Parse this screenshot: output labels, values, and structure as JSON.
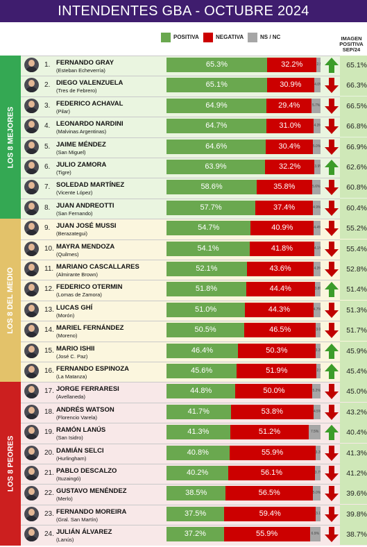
{
  "title": "INTENDENTES GBA - OCTUBRE 2024",
  "legend": {
    "positiva": "POSITIVA",
    "negativa": "NEGATIVA",
    "nsnc": "NS / NC",
    "imagen": "IMAGEN POSITIVA SEP/24"
  },
  "colors": {
    "header_bg": "#3f1d6e",
    "positiva": "#6aa84f",
    "negativa": "#cc0000",
    "nsnc": "#a6a6a6",
    "mejores": "#34a853",
    "medio": "#e3c26a",
    "peores": "#cc1f1f",
    "arrow_up": "#3c9c2a",
    "arrow_down": "#c00000"
  },
  "groups": [
    {
      "label": "LOS 8 MEJORES",
      "color_key": "mejores",
      "bg": "#eaf5e0"
    },
    {
      "label": "LOS 8 DEL MEDIO",
      "color_key": "medio",
      "bg": "#fbf6de"
    },
    {
      "label": "LOS 8 PEORES",
      "color_key": "peores",
      "bg": "#f8e8e8"
    }
  ],
  "chart_data": {
    "type": "bar",
    "stacked": true,
    "title": "INTENDENTES GBA - OCTUBRE 2024",
    "series_names": [
      "POSITIVA",
      "NEGATIVA",
      "NS / NC"
    ],
    "rows": [
      {
        "rank": "1.",
        "name": "FERNANDO GRAY",
        "district": "(Esteban Echeverría)",
        "positiva": 65.3,
        "negativa": 32.2,
        "nsnc": 2.5,
        "pos_label": "65.3%",
        "neg_label": "32.2%",
        "nsnc_label": "2.5%",
        "trend": "up",
        "prev": 65.1,
        "prev_label": "65.1%"
      },
      {
        "rank": "2.",
        "name": "DIEGO VALENZUELA",
        "district": "(Tres de Febrero)",
        "positiva": 65.1,
        "negativa": 30.9,
        "nsnc": 4.0,
        "pos_label": "65.1%",
        "neg_label": "30.9%",
        "nsnc_label": "4.0%",
        "trend": "down",
        "prev": 66.3,
        "prev_label": "66.3%"
      },
      {
        "rank": "3.",
        "name": "FEDERICO ACHAVAL",
        "district": "(Pilar)",
        "positiva": 64.9,
        "negativa": 29.4,
        "nsnc": 5.7,
        "pos_label": "64.9%",
        "neg_label": "29.4%",
        "nsnc_label": "5.7%",
        "trend": "down",
        "prev": 66.5,
        "prev_label": "66.5%"
      },
      {
        "rank": "4.",
        "name": "LEONARDO NARDINI",
        "district": "(Malvinas Argentinas)",
        "positiva": 64.7,
        "negativa": 31.0,
        "nsnc": 4.3,
        "pos_label": "64.7%",
        "neg_label": "31.0%",
        "nsnc_label": "4.3%",
        "trend": "down",
        "prev": 66.8,
        "prev_label": "66.8%"
      },
      {
        "rank": "5.",
        "name": "JAIME MÉNDEZ",
        "district": "(San Miguel)",
        "positiva": 64.6,
        "negativa": 30.4,
        "nsnc": 5.0,
        "pos_label": "64.6%",
        "neg_label": "30.4%",
        "nsnc_label": "5.0%",
        "trend": "down",
        "prev": 66.9,
        "prev_label": "66.9%"
      },
      {
        "rank": "6.",
        "name": "JULIO ZAMORA",
        "district": "(Tigre)",
        "positiva": 63.9,
        "negativa": 32.2,
        "nsnc": 3.9,
        "pos_label": "63.9%",
        "neg_label": "32.2%",
        "nsnc_label": "3.9%",
        "trend": "up",
        "prev": 62.6,
        "prev_label": "62.6%"
      },
      {
        "rank": "7.",
        "name": "SOLEDAD MARTÍNEZ",
        "district": "(Vicente López)",
        "positiva": 58.6,
        "negativa": 35.8,
        "nsnc": 5.6,
        "pos_label": "58.6%",
        "neg_label": "35.8%",
        "nsnc_label": "5.6%",
        "trend": "down",
        "prev": 60.8,
        "prev_label": "60.8%"
      },
      {
        "rank": "8.",
        "name": "JUAN ANDREOTTI",
        "district": "(San Fernando)",
        "positiva": 57.7,
        "negativa": 37.4,
        "nsnc": 4.9,
        "pos_label": "57.7%",
        "neg_label": "37.4%",
        "nsnc_label": "4.9%",
        "trend": "down",
        "prev": 60.4,
        "prev_label": "60.4%"
      },
      {
        "rank": "9.",
        "name": "JUAN JOSÉ MUSSI",
        "district": "(Berazategui)",
        "positiva": 54.7,
        "negativa": 40.9,
        "nsnc": 4.4,
        "pos_label": "54.7%",
        "neg_label": "40.9%",
        "nsnc_label": "4.4%",
        "trend": "down",
        "prev": 55.2,
        "prev_label": "55.2%"
      },
      {
        "rank": "10.",
        "name": "MAYRA MENDOZA",
        "district": "(Quilmes)",
        "positiva": 54.1,
        "negativa": 41.8,
        "nsnc": 4.1,
        "pos_label": "54.1%",
        "neg_label": "41.8%",
        "nsnc_label": "4.1%",
        "trend": "down",
        "prev": 55.4,
        "prev_label": "55.4%"
      },
      {
        "rank": "11.",
        "name": "MARIANO CASCALLARES",
        "district": "(Almirante Brown)",
        "positiva": 52.1,
        "negativa": 43.6,
        "nsnc": 4.3,
        "pos_label": "52.1%",
        "neg_label": "43.6%",
        "nsnc_label": "4.3%",
        "trend": "down",
        "prev": 52.8,
        "prev_label": "52.8%"
      },
      {
        "rank": "12.",
        "name": "FEDERICO OTERMIN",
        "district": "(Lomas de Zamora)",
        "positiva": 51.8,
        "negativa": 44.4,
        "nsnc": 3.8,
        "pos_label": "51.8%",
        "neg_label": "44.4%",
        "nsnc_label": "3.8%",
        "trend": "up",
        "prev": 51.4,
        "prev_label": "51.4%"
      },
      {
        "rank": "13.",
        "name": "LUCAS GHÍ",
        "district": "(Morón)",
        "positiva": 51.0,
        "negativa": 44.3,
        "nsnc": 4.7,
        "pos_label": "51.0%",
        "neg_label": "44.3%",
        "nsnc_label": "4.7%",
        "trend": "down",
        "prev": 51.3,
        "prev_label": "51.3%"
      },
      {
        "rank": "14.",
        "name": "MARIEL FERNÁNDEZ",
        "district": "(Moreno)",
        "positiva": 50.5,
        "negativa": 46.5,
        "nsnc": 3.0,
        "pos_label": "50.5%",
        "neg_label": "46.5%",
        "nsnc_label": "3.0%",
        "trend": "down",
        "prev": 51.7,
        "prev_label": "51.7%"
      },
      {
        "rank": "15.",
        "name": "MARIO ISHII",
        "district": "(José C. Paz)",
        "positiva": 46.4,
        "negativa": 50.3,
        "nsnc": 3.3,
        "pos_label": "46.4%",
        "neg_label": "50.3%",
        "nsnc_label": "3.3%",
        "trend": "up",
        "prev": 45.9,
        "prev_label": "45.9%"
      },
      {
        "rank": "16.",
        "name": "FERNANDO ESPINOZA",
        "district": "(La Matanza)",
        "positiva": 45.6,
        "negativa": 51.9,
        "nsnc": 2.5,
        "pos_label": "45.6%",
        "neg_label": "51.9%",
        "nsnc_label": "2.5%",
        "trend": "up",
        "prev": 45.4,
        "prev_label": "45.4%"
      },
      {
        "rank": "17.",
        "name": "JORGE FERRARESI",
        "district": "(Avellaneda)",
        "positiva": 44.8,
        "negativa": 50.0,
        "nsnc": 5.2,
        "pos_label": "44.8%",
        "neg_label": "50.0%",
        "nsnc_label": "5.2%",
        "trend": "down",
        "prev": 45.0,
        "prev_label": "45.0%"
      },
      {
        "rank": "18.",
        "name": "ANDRÉS WATSON",
        "district": "(Florencio Varela)",
        "positiva": 41.7,
        "negativa": 53.8,
        "nsnc": 4.5,
        "pos_label": "41.7%",
        "neg_label": "53.8%",
        "nsnc_label": "4.5%",
        "trend": "down",
        "prev": 43.2,
        "prev_label": "43.2%"
      },
      {
        "rank": "19.",
        "name": "RAMÓN LANÚS",
        "district": "(San Isidro)",
        "positiva": 41.3,
        "negativa": 51.2,
        "nsnc": 7.5,
        "pos_label": "41.3%",
        "neg_label": "51.2%",
        "nsnc_label": "7.5%",
        "trend": "up",
        "prev": 40.4,
        "prev_label": "40.4%"
      },
      {
        "rank": "20.",
        "name": "DAMIÁN SELCI",
        "district": "(Hurlingham)",
        "positiva": 40.8,
        "negativa": 55.9,
        "nsnc": 3.3,
        "pos_label": "40.8%",
        "neg_label": "55.9%",
        "nsnc_label": "3.3%",
        "trend": "down",
        "prev": 41.3,
        "prev_label": "41.3%"
      },
      {
        "rank": "21.",
        "name": "PABLO DESCALZO",
        "district": "(Ituzaingó)",
        "positiva": 40.2,
        "negativa": 56.1,
        "nsnc": 3.7,
        "pos_label": "40.2%",
        "neg_label": "56.1%",
        "nsnc_label": "3.7%",
        "trend": "down",
        "prev": 41.2,
        "prev_label": "41.2%"
      },
      {
        "rank": "22.",
        "name": "GUSTAVO MENÉNDEZ",
        "district": "(Merlo)",
        "positiva": 38.5,
        "negativa": 56.5,
        "nsnc": 5.0,
        "pos_label": "38.5%",
        "neg_label": "56.5%",
        "nsnc_label": "5.0%",
        "trend": "down",
        "prev": 39.6,
        "prev_label": "39.6%"
      },
      {
        "rank": "23.",
        "name": "FERNANDO MOREIRA",
        "district": "(Gral. San Martín)",
        "positiva": 37.5,
        "negativa": 59.4,
        "nsnc": 3.1,
        "pos_label": "37.5%",
        "neg_label": "59.4%",
        "nsnc_label": "3.1%",
        "trend": "down",
        "prev": 39.8,
        "prev_label": "39.8%"
      },
      {
        "rank": "24.",
        "name": "JULIÁN ÁLVAREZ",
        "district": "(Lanús)",
        "positiva": 37.2,
        "negativa": 55.9,
        "nsnc": 6.9,
        "pos_label": "37.2%",
        "neg_label": "55.9%",
        "nsnc_label": "6.9%",
        "trend": "down",
        "prev": 38.7,
        "prev_label": "38.7%"
      }
    ]
  }
}
